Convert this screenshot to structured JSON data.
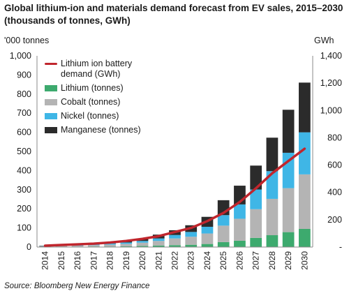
{
  "header": {
    "title": "Global lithium-ion and materials demand forecast from EV sales, 2015–2030 (thousands of tonnes, GWh)"
  },
  "footer": {
    "source": "Source: Bloomberg New Energy Finance"
  },
  "chart_data": {
    "type": "bar",
    "stacked": true,
    "title": "Global lithium-ion and materials demand forecast from EV sales, 2015–2030 (thousands of tonnes, GWh)",
    "ylabel": "'000 tonnes",
    "y2label": "GWh",
    "ylim": [
      0,
      1000
    ],
    "y2lim": [
      0,
      1400
    ],
    "yticks": [
      0,
      100,
      200,
      300,
      400,
      500,
      600,
      700,
      800,
      900,
      1000
    ],
    "ytick_labels": [
      "0",
      "100",
      "200",
      "300",
      "400",
      "500",
      "600",
      "700",
      "800",
      "900",
      "1,000"
    ],
    "y2ticks": [
      0,
      200,
      400,
      600,
      800,
      1000,
      1200,
      1400
    ],
    "y2tick_labels": [
      "-",
      "200",
      "400",
      "600",
      "800",
      "1,000",
      "1,200",
      "1,400"
    ],
    "grid": false,
    "legend_position": "top-left",
    "categories": [
      "2014",
      "2015",
      "2016",
      "2017",
      "2018",
      "2019",
      "2020",
      "2021",
      "2022",
      "2023",
      "2024",
      "2025",
      "2026",
      "2027",
      "2028",
      "2029",
      "2030"
    ],
    "series": [
      {
        "name": "Lithium (tonnes)",
        "kind": "bar",
        "axis": "left",
        "color": "#3daa6e",
        "values": [
          1,
          2,
          2,
          3,
          3,
          4,
          6,
          8,
          10,
          12,
          16,
          26,
          33,
          48,
          62,
          78,
          95
        ]
      },
      {
        "name": "Cobalt (tonnes)",
        "kind": "bar",
        "axis": "left",
        "color": "#b4b4b4",
        "values": [
          3,
          4,
          5,
          7,
          10,
          13,
          17,
          24,
          35,
          42,
          55,
          86,
          115,
          150,
          190,
          230,
          285
        ]
      },
      {
        "name": "Nickel (tonnes)",
        "kind": "bar",
        "axis": "left",
        "color": "#3fb6e6",
        "values": [
          1,
          2,
          3,
          4,
          6,
          7,
          9,
          13,
          18,
          25,
          35,
          55,
          75,
          103,
          145,
          185,
          220
        ]
      },
      {
        "name": "Manganese (tonnes)",
        "kind": "bar",
        "axis": "left",
        "color": "#2b2b2b",
        "values": [
          2,
          3,
          4,
          5,
          8,
          10,
          13,
          20,
          25,
          35,
          52,
          78,
          98,
          125,
          175,
          225,
          260
        ]
      },
      {
        "name": "Lithium ion battery demand (GWh)",
        "kind": "line",
        "axis": "right",
        "color": "#c0262d",
        "values": [
          10,
          15,
          20,
          25,
          33,
          45,
          60,
          80,
          110,
          140,
          190,
          250,
          330,
          430,
          540,
          630,
          720
        ]
      }
    ]
  },
  "legend": {
    "items": [
      {
        "label": "Lithium ion battery demand (GWh)",
        "color": "#c0262d",
        "kind": "line"
      },
      {
        "label": "Lithium (tonnes)",
        "color": "#3daa6e",
        "kind": "box"
      },
      {
        "label": "Cobalt (tonnes)",
        "color": "#b4b4b4",
        "kind": "box"
      },
      {
        "label": "Nickel (tonnes)",
        "color": "#3fb6e6",
        "kind": "box"
      },
      {
        "label": "Manganese (tonnes)",
        "color": "#2b2b2b",
        "kind": "box"
      }
    ]
  }
}
